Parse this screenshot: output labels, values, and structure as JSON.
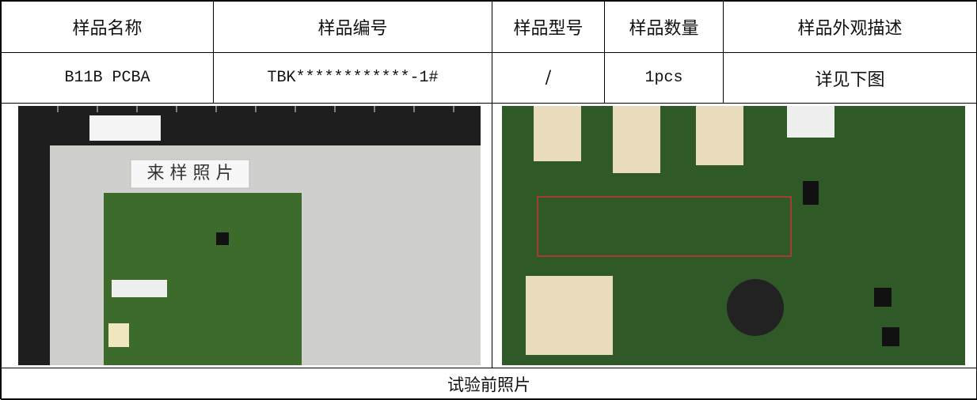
{
  "table": {
    "header": [
      "样品名称",
      "样品编号",
      "样品型号",
      "样品数量",
      "样品外观描述"
    ],
    "row": [
      "B11B PCBA",
      "TBK************-1#",
      "/",
      "1pcs",
      "详见下图"
    ],
    "photo_label": "来 样 照 片",
    "caption": "试验前照片"
  }
}
